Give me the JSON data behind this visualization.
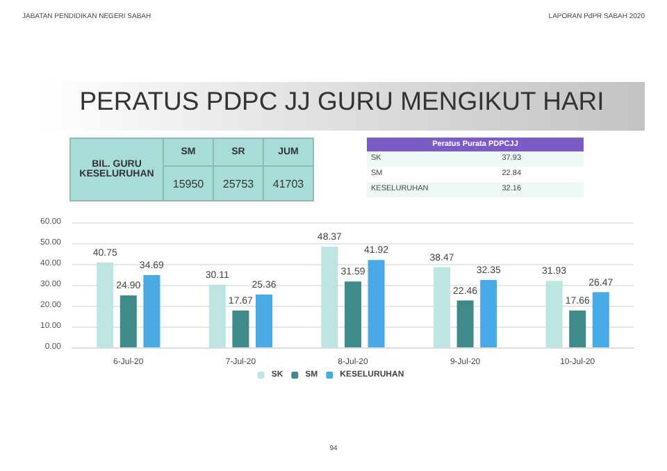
{
  "chart_data": [
    {
      "type": "other",
      "title": "PERATUS PDPC JJ GURU MENGIKUT HARI",
      "annotations": [
        "JABATAN PENDIDIKAN NEGERI SABAH",
        "LAPORAN PdPR SABAH 2020",
        "94"
      ]
    },
    {
      "type": "other",
      "title": "BIL. GURU KESELURUHAN",
      "categories": [
        "SM",
        "SR",
        "JUM"
      ],
      "values": [
        15950,
        25753,
        41703
      ],
      "color": "#a8dcd6",
      "data_labels": true
    },
    {
      "type": "other",
      "title": "Peratus Purata PDPCJJ",
      "categories": [
        "SK",
        "SM",
        "KESELURUHAN"
      ],
      "values": [
        37.93,
        22.84,
        32.16
      ],
      "data_labels": true
    },
    {
      "type": "bar",
      "categories": [
        "6-Jul-20",
        "7-Jul-20",
        "8-Jul-20",
        "9-Jul-20",
        "10-Jul-20"
      ],
      "series": [
        {
          "name": "SK",
          "color": "#bde5e2",
          "values": [
            40.75,
            30.11,
            48.37,
            38.47,
            31.93
          ],
          "value_labels": [
            "40.75",
            "30.11",
            "48.37",
            "38.47",
            "31.93"
          ]
        },
        {
          "name": "SM",
          "color": "#3e8b89",
          "values": [
            24.9,
            17.67,
            31.59,
            22.46,
            17.66
          ],
          "value_labels": [
            "24.90",
            "17.67",
            "31.59",
            "22.46",
            "17.66"
          ]
        },
        {
          "name": "KESELURUHAN",
          "color": "#4aaae6",
          "values": [
            34.69,
            25.36,
            41.92,
            32.35,
            26.47
          ],
          "value_labels": [
            "34.69",
            "25.36",
            "41.92",
            "32.35",
            "26.47"
          ]
        }
      ],
      "ylim": [
        0,
        60
      ],
      "yticks": [
        {
          "value": 0,
          "label": "0.00"
        },
        {
          "value": 10,
          "label": "10.00"
        },
        {
          "value": 20,
          "label": "20.00"
        },
        {
          "value": 30,
          "label": "30.00"
        },
        {
          "value": 40,
          "label": "40.00"
        },
        {
          "value": 50,
          "label": "50.00"
        },
        {
          "value": 60,
          "label": "60.00"
        }
      ],
      "grid": "y",
      "legend": "bottom"
    }
  ]
}
